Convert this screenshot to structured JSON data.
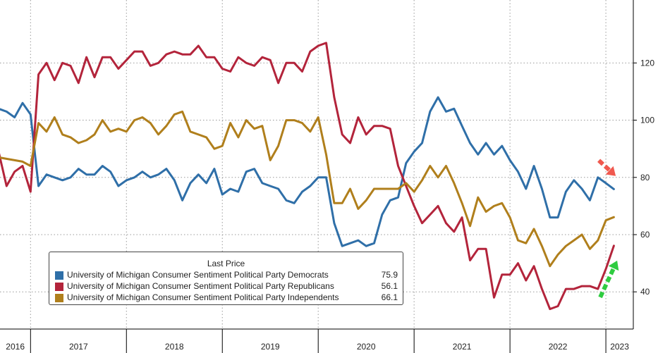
{
  "chart_data": {
    "type": "line",
    "title": "",
    "xlabel": "",
    "ylabel": "",
    "x_start": "2016-09",
    "x_end": "2023-06",
    "ylim": [
      27,
      142
    ],
    "yticks": [
      40,
      60,
      80,
      100,
      120
    ],
    "year_labels": [
      "2016",
      "2017",
      "2018",
      "2019",
      "2020",
      "2021",
      "2022",
      "2023"
    ],
    "grid": true,
    "legend_position": "bottom-left",
    "legend_title": "Last Price",
    "series": [
      {
        "name": "University of Michigan Consumer Sentiment Political Party Democrats",
        "last_price": "75.9",
        "color": "#2f6fa8",
        "values": [
          104,
          103,
          101,
          106,
          102,
          77,
          81,
          80,
          79,
          80,
          83,
          81,
          81,
          84,
          82,
          77,
          79,
          80,
          82,
          80,
          81,
          83,
          79,
          72,
          78,
          81,
          78,
          83,
          74,
          76,
          75,
          82,
          83,
          78,
          77,
          76,
          72,
          71,
          75,
          77,
          80,
          80,
          64,
          56,
          57,
          58,
          56,
          57,
          67,
          72,
          73,
          85,
          89,
          92,
          103,
          108,
          103,
          104,
          98,
          92,
          88,
          92,
          88,
          91,
          86,
          82,
          76,
          84,
          76,
          66,
          66,
          75,
          79,
          76,
          72,
          80,
          78,
          75.9
        ],
        "points": [
          [
            "2016-09",
            104
          ],
          [
            "2016-10",
            103
          ],
          [
            "2016-11",
            101
          ],
          [
            "2016-12",
            106
          ],
          [
            "2017-01",
            102
          ],
          [
            "2017-02",
            77
          ],
          [
            "2017-03",
            81
          ],
          [
            "2017-04",
            80
          ],
          [
            "2017-05",
            79
          ],
          [
            "2017-06",
            80
          ],
          [
            "2017-07",
            83
          ],
          [
            "2017-08",
            81
          ],
          [
            "2017-09",
            81
          ],
          [
            "2017-10",
            84
          ],
          [
            "2017-11",
            82
          ],
          [
            "2017-12",
            77
          ],
          [
            "2018-01",
            79
          ],
          [
            "2018-02",
            80
          ],
          [
            "2018-03",
            82
          ],
          [
            "2018-04",
            80
          ],
          [
            "2018-05",
            81
          ],
          [
            "2018-06",
            83
          ],
          [
            "2018-07",
            79
          ],
          [
            "2018-08",
            72
          ],
          [
            "2018-09",
            78
          ],
          [
            "2018-10",
            81
          ],
          [
            "2018-11",
            78
          ],
          [
            "2018-12",
            83
          ],
          [
            "2019-01",
            74
          ],
          [
            "2019-02",
            76
          ],
          [
            "2019-03",
            75
          ],
          [
            "2019-04",
            82
          ],
          [
            "2019-05",
            83
          ],
          [
            "2019-06",
            78
          ],
          [
            "2019-07",
            77
          ],
          [
            "2019-08",
            76
          ],
          [
            "2019-09",
            72
          ],
          [
            "2019-10",
            71
          ],
          [
            "2019-11",
            75
          ],
          [
            "2019-12",
            77
          ],
          [
            "2020-01",
            80
          ],
          [
            "2020-02",
            80
          ],
          [
            "2020-03",
            64
          ],
          [
            "2020-04",
            56
          ],
          [
            "2020-05",
            57
          ],
          [
            "2020-06",
            58
          ],
          [
            "2020-07",
            56
          ],
          [
            "2020-08",
            57
          ],
          [
            "2020-09",
            67
          ],
          [
            "2020-10",
            72
          ],
          [
            "2020-11",
            73
          ],
          [
            "2020-12",
            85
          ],
          [
            "2021-01",
            89
          ],
          [
            "2021-02",
            92
          ],
          [
            "2021-03",
            103
          ],
          [
            "2021-04",
            108
          ],
          [
            "2021-05",
            103
          ],
          [
            "2021-06",
            104
          ],
          [
            "2021-07",
            98
          ],
          [
            "2021-08",
            92
          ],
          [
            "2021-09",
            88
          ],
          [
            "2021-10",
            92
          ],
          [
            "2021-11",
            88
          ],
          [
            "2021-12",
            91
          ],
          [
            "2022-01",
            86
          ],
          [
            "2022-02",
            82
          ],
          [
            "2022-03",
            76
          ],
          [
            "2022-04",
            84
          ],
          [
            "2022-05",
            76
          ],
          [
            "2022-06",
            66
          ],
          [
            "2022-07",
            66
          ],
          [
            "2022-08",
            75
          ],
          [
            "2022-09",
            79
          ],
          [
            "2022-10",
            76
          ],
          [
            "2022-11",
            72
          ],
          [
            "2022-12",
            80
          ],
          [
            "2023-01",
            78
          ],
          [
            "2023-02",
            75.9
          ]
        ]
      },
      {
        "name": "University of Michigan Consumer Sentiment Political Party Republicans",
        "last_price": "56.1",
        "color": "#b3243b",
        "values": [
          89,
          77,
          82,
          84,
          75,
          116,
          120,
          114,
          120,
          119,
          113,
          122,
          115,
          122,
          122,
          118,
          121,
          124,
          124,
          119,
          120,
          123,
          124,
          123,
          123,
          126,
          122,
          122,
          118,
          117,
          122,
          120,
          119,
          122,
          121,
          113,
          120,
          120,
          117,
          124,
          126,
          127,
          108,
          95,
          92,
          101,
          95,
          98,
          98,
          97,
          84,
          77,
          70,
          64,
          67,
          70,
          64,
          61,
          66,
          51,
          55,
          55,
          38,
          46,
          46,
          50,
          44,
          49,
          41,
          34,
          35,
          41,
          41,
          42,
          42,
          41,
          48,
          56.1
        ],
        "points": [
          [
            "2016-09",
            89
          ],
          [
            "2016-10",
            77
          ],
          [
            "2016-11",
            82
          ],
          [
            "2016-12",
            84
          ],
          [
            "2017-01",
            75
          ],
          [
            "2017-02",
            116
          ],
          [
            "2017-03",
            120
          ],
          [
            "2017-04",
            114
          ],
          [
            "2017-05",
            120
          ],
          [
            "2017-06",
            119
          ],
          [
            "2017-07",
            113
          ],
          [
            "2017-08",
            122
          ],
          [
            "2017-09",
            115
          ],
          [
            "2017-10",
            122
          ],
          [
            "2017-11",
            122
          ],
          [
            "2017-12",
            118
          ],
          [
            "2018-01",
            121
          ],
          [
            "2018-02",
            124
          ],
          [
            "2018-03",
            124
          ],
          [
            "2018-04",
            119
          ],
          [
            "2018-05",
            120
          ],
          [
            "2018-06",
            123
          ],
          [
            "2018-07",
            124
          ],
          [
            "2018-08",
            123
          ],
          [
            "2018-09",
            123
          ],
          [
            "2018-10",
            126
          ],
          [
            "2018-11",
            122
          ],
          [
            "2018-12",
            122
          ],
          [
            "2019-01",
            118
          ],
          [
            "2019-02",
            117
          ],
          [
            "2019-03",
            122
          ],
          [
            "2019-04",
            120
          ],
          [
            "2019-05",
            119
          ],
          [
            "2019-06",
            122
          ],
          [
            "2019-07",
            121
          ],
          [
            "2019-08",
            113
          ],
          [
            "2019-09",
            120
          ],
          [
            "2019-10",
            120
          ],
          [
            "2019-11",
            117
          ],
          [
            "2019-12",
            124
          ],
          [
            "2020-01",
            126
          ],
          [
            "2020-02",
            127
          ],
          [
            "2020-03",
            108
          ],
          [
            "2020-04",
            95
          ],
          [
            "2020-05",
            92
          ],
          [
            "2020-06",
            101
          ],
          [
            "2020-07",
            95
          ],
          [
            "2020-08",
            98
          ],
          [
            "2020-09",
            98
          ],
          [
            "2020-10",
            97
          ],
          [
            "2020-11",
            84
          ],
          [
            "2020-12",
            77
          ],
          [
            "2021-01",
            70
          ],
          [
            "2021-02",
            64
          ],
          [
            "2021-03",
            67
          ],
          [
            "2021-04",
            70
          ],
          [
            "2021-05",
            64
          ],
          [
            "2021-06",
            61
          ],
          [
            "2021-07",
            66
          ],
          [
            "2021-08",
            51
          ],
          [
            "2021-09",
            55
          ],
          [
            "2021-10",
            55
          ],
          [
            "2021-11",
            38
          ],
          [
            "2021-12",
            46
          ],
          [
            "2022-01",
            46
          ],
          [
            "2022-02",
            50
          ],
          [
            "2022-03",
            44
          ],
          [
            "2022-04",
            49
          ],
          [
            "2022-05",
            41
          ],
          [
            "2022-06",
            34
          ],
          [
            "2022-07",
            35
          ],
          [
            "2022-08",
            41
          ],
          [
            "2022-09",
            41
          ],
          [
            "2022-10",
            42
          ],
          [
            "2022-11",
            42
          ],
          [
            "2022-12",
            41
          ],
          [
            "2023-01",
            48
          ],
          [
            "2023-02",
            56.1
          ]
        ]
      },
      {
        "name": "University of Michigan Consumer Sentiment Political Party Independents",
        "last_price": "66.1",
        "color": "#b07f1c",
        "values": [
          87,
          86.5,
          86,
          85.5,
          84,
          99,
          96,
          101,
          95,
          94,
          92,
          93,
          95,
          100,
          96,
          97,
          96,
          100,
          101,
          99,
          95,
          98,
          102,
          103,
          96,
          95,
          94,
          90,
          91,
          99,
          94,
          100,
          97,
          98,
          86,
          91,
          100,
          100,
          99,
          96,
          101,
          88,
          71,
          71,
          76,
          69,
          72,
          76,
          76,
          76,
          76,
          78,
          75,
          79,
          84,
          80,
          84,
          78,
          71,
          63,
          73,
          68,
          70,
          71,
          66,
          58,
          57,
          62,
          56,
          49,
          53,
          56,
          58,
          60,
          55,
          58,
          65,
          66.1
        ],
        "points": [
          [
            "2016-09",
            87
          ],
          [
            "2016-10",
            86.5
          ],
          [
            "2016-11",
            86
          ],
          [
            "2016-12",
            85.5
          ],
          [
            "2017-01",
            84
          ],
          [
            "2017-02",
            99
          ],
          [
            "2017-03",
            96
          ],
          [
            "2017-04",
            101
          ],
          [
            "2017-05",
            95
          ],
          [
            "2017-06",
            94
          ],
          [
            "2017-07",
            92
          ],
          [
            "2017-08",
            93
          ],
          [
            "2017-09",
            95
          ],
          [
            "2017-10",
            100
          ],
          [
            "2017-11",
            96
          ],
          [
            "2017-12",
            97
          ],
          [
            "2018-01",
            96
          ],
          [
            "2018-02",
            100
          ],
          [
            "2018-03",
            101
          ],
          [
            "2018-04",
            99
          ],
          [
            "2018-05",
            95
          ],
          [
            "2018-06",
            98
          ],
          [
            "2018-07",
            102
          ],
          [
            "2018-08",
            103
          ],
          [
            "2018-09",
            96
          ],
          [
            "2018-10",
            95
          ],
          [
            "2018-11",
            94
          ],
          [
            "2018-12",
            90
          ],
          [
            "2019-01",
            91
          ],
          [
            "2019-02",
            99
          ],
          [
            "2019-03",
            94
          ],
          [
            "2019-04",
            100
          ],
          [
            "2019-05",
            97
          ],
          [
            "2019-06",
            98
          ],
          [
            "2019-07",
            86
          ],
          [
            "2019-08",
            91
          ],
          [
            "2019-09",
            100
          ],
          [
            "2019-10",
            100
          ],
          [
            "2019-11",
            99
          ],
          [
            "2019-12",
            96
          ],
          [
            "2020-01",
            101
          ],
          [
            "2020-02",
            88
          ],
          [
            "2020-03",
            71
          ],
          [
            "2020-04",
            71
          ],
          [
            "2020-05",
            76
          ],
          [
            "2020-06",
            69
          ],
          [
            "2020-07",
            72
          ],
          [
            "2020-08",
            76
          ],
          [
            "2020-09",
            76
          ],
          [
            "2020-10",
            76
          ],
          [
            "2020-11",
            76
          ],
          [
            "2020-12",
            78
          ],
          [
            "2021-01",
            75
          ],
          [
            "2021-02",
            79
          ],
          [
            "2021-03",
            84
          ],
          [
            "2021-04",
            80
          ],
          [
            "2021-05",
            84
          ],
          [
            "2021-06",
            78
          ],
          [
            "2021-07",
            71
          ],
          [
            "2021-08",
            63
          ],
          [
            "2021-09",
            73
          ],
          [
            "2021-10",
            68
          ],
          [
            "2021-11",
            70
          ],
          [
            "2021-12",
            71
          ],
          [
            "2022-01",
            66
          ],
          [
            "2022-02",
            58
          ],
          [
            "2022-03",
            57
          ],
          [
            "2022-04",
            62
          ],
          [
            "2022-05",
            56
          ],
          [
            "2022-06",
            49
          ],
          [
            "2022-07",
            53
          ],
          [
            "2022-08",
            56
          ],
          [
            "2022-09",
            58
          ],
          [
            "2022-10",
            60
          ],
          [
            "2022-11",
            55
          ],
          [
            "2022-12",
            58
          ],
          [
            "2023-01",
            65
          ],
          [
            "2023-02",
            66.1
          ]
        ]
      }
    ],
    "annotations": [
      {
        "kind": "arrow-down",
        "color": "#f0594f",
        "at": [
          "2023-01",
          81
        ]
      },
      {
        "kind": "arrow-up",
        "color": "#2ecc40",
        "at": [
          "2023-01",
          45
        ]
      }
    ]
  }
}
